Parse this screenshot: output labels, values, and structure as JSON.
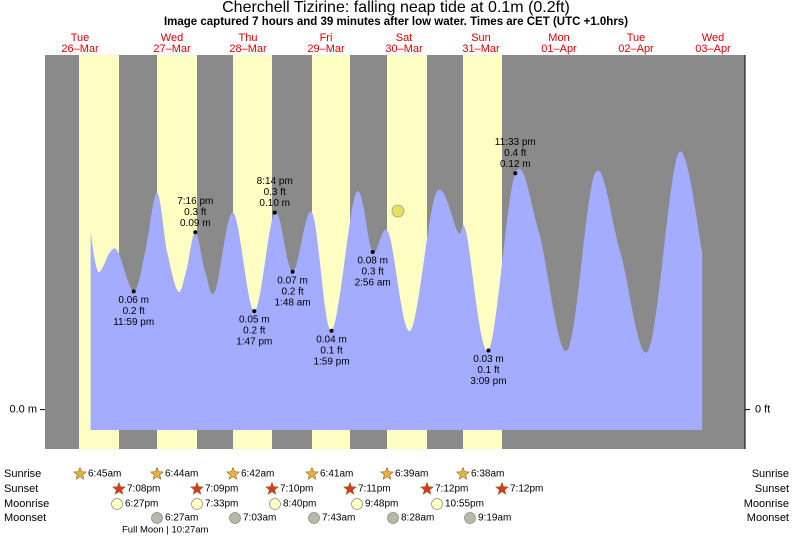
{
  "chart_data": {
    "type": "area",
    "title": "Cherchell Tizirine: falling  neap tide at 0.1m (0.2ft)",
    "subtitle": "Image captured 7 hours and 39 minutes after low water. Times are CET (UTC +1.0hrs)",
    "weekdays": [
      "Tue",
      "Wed",
      "Thu",
      "Fri",
      "Sat",
      "Sun",
      "Mon",
      "Tue",
      "Wed"
    ],
    "dates": [
      "26–Mar",
      "27–Mar",
      "28–Mar",
      "29–Mar",
      "30–Mar",
      "31–Mar",
      "01–Apr",
      "02–Apr",
      "03–Apr"
    ],
    "x": [
      10.5,
      12.9,
      16.6,
      19.1,
      24.0,
      27.6,
      31.3,
      34.5,
      37.9,
      40.4,
      43.3,
      46.4,
      49.5,
      55.2,
      61.8,
      68.2,
      73.8,
      79.9,
      86.0,
      93.7,
      98.9,
      103.8,
      110.7,
      118.8,
      125.7,
      128.2,
      135.2,
      143.6,
      151.0,
      159.9,
      168.6,
      176.5,
      185.3,
      194.7,
      202.2
    ],
    "values": [
      0.09,
      0.07,
      0.08,
      0.08,
      0.06,
      0.08,
      0.11,
      0.08,
      0.06,
      0.07,
      0.09,
      0.07,
      0.06,
      0.1,
      0.05,
      0.1,
      0.07,
      0.1,
      0.04,
      0.11,
      0.08,
      0.09,
      0.04,
      0.11,
      0.09,
      0.09,
      0.03,
      0.12,
      0.09,
      0.03,
      0.12,
      0.08,
      0.03,
      0.13,
      0.08
    ],
    "color": "#a3acff",
    "xlim": [
      -3.8,
      215.6
    ],
    "ylim": [
      -0.02,
      0.18
    ],
    "yticks": [
      {
        "value": 0,
        "label": "0.0 m"
      }
    ],
    "y2lim": [
      -0.0656,
      0.5906
    ],
    "y2ticks": [
      {
        "value": 0,
        "label": "0 ft"
      }
    ],
    "extremes": [
      {
        "kind": "low",
        "x": 24.0,
        "value": 0.06,
        "m": "0.06 m",
        "ft": "0.2 ft",
        "time": "11:59 pm"
      },
      {
        "kind": "high",
        "x": 43.3,
        "value": 0.09,
        "m": "0.09 m",
        "ft": "0.3 ft",
        "time": "7:16 pm"
      },
      {
        "kind": "low",
        "x": 61.8,
        "value": 0.05,
        "m": "0.05 m",
        "ft": "0.2 ft",
        "time": "1:47 pm"
      },
      {
        "kind": "high",
        "x": 68.2,
        "value": 0.1,
        "m": "0.10 m",
        "ft": "0.3 ft",
        "time": "8:14 pm"
      },
      {
        "kind": "low",
        "x": 73.8,
        "value": 0.07,
        "m": "0.07 m",
        "ft": "0.2 ft",
        "time": "1:48 am"
      },
      {
        "kind": "low",
        "x": 86.0,
        "value": 0.04,
        "m": "0.04 m",
        "ft": "0.1 ft",
        "time": "1:59 pm"
      },
      {
        "kind": "low",
        "x": 98.9,
        "value": 0.08,
        "m": "0.08 m",
        "ft": "0.3 ft",
        "time": "2:56 am"
      },
      {
        "kind": "low",
        "x": 135.2,
        "value": 0.03,
        "m": "0.03 m",
        "ft": "0.1 ft",
        "time": "3:09 pm"
      },
      {
        "kind": "high",
        "x": 143.6,
        "value": 0.12,
        "m": "0.12 m",
        "ft": "0.4 ft",
        "time": "11:33 pm"
      }
    ]
  },
  "almanac": {
    "rows": [
      "Sunrise",
      "Sunset",
      "Moonrise",
      "Moonset"
    ],
    "sunrise": [
      "6:45am",
      "6:44am",
      "6:42am",
      "6:41am",
      "6:39am",
      "6:38am"
    ],
    "sunset": [
      "7:08pm",
      "7:09pm",
      "7:10pm",
      "7:11pm",
      "7:12pm",
      "7:12pm"
    ],
    "moonrise": [
      "6:27pm",
      "7:33pm",
      "8:40pm",
      "9:48pm",
      "10:55pm"
    ],
    "moonset": [
      "6:27am",
      "7:03am",
      "7:43am",
      "8:28am",
      "9:19am"
    ],
    "note": "Full Moon | 10:27am"
  }
}
